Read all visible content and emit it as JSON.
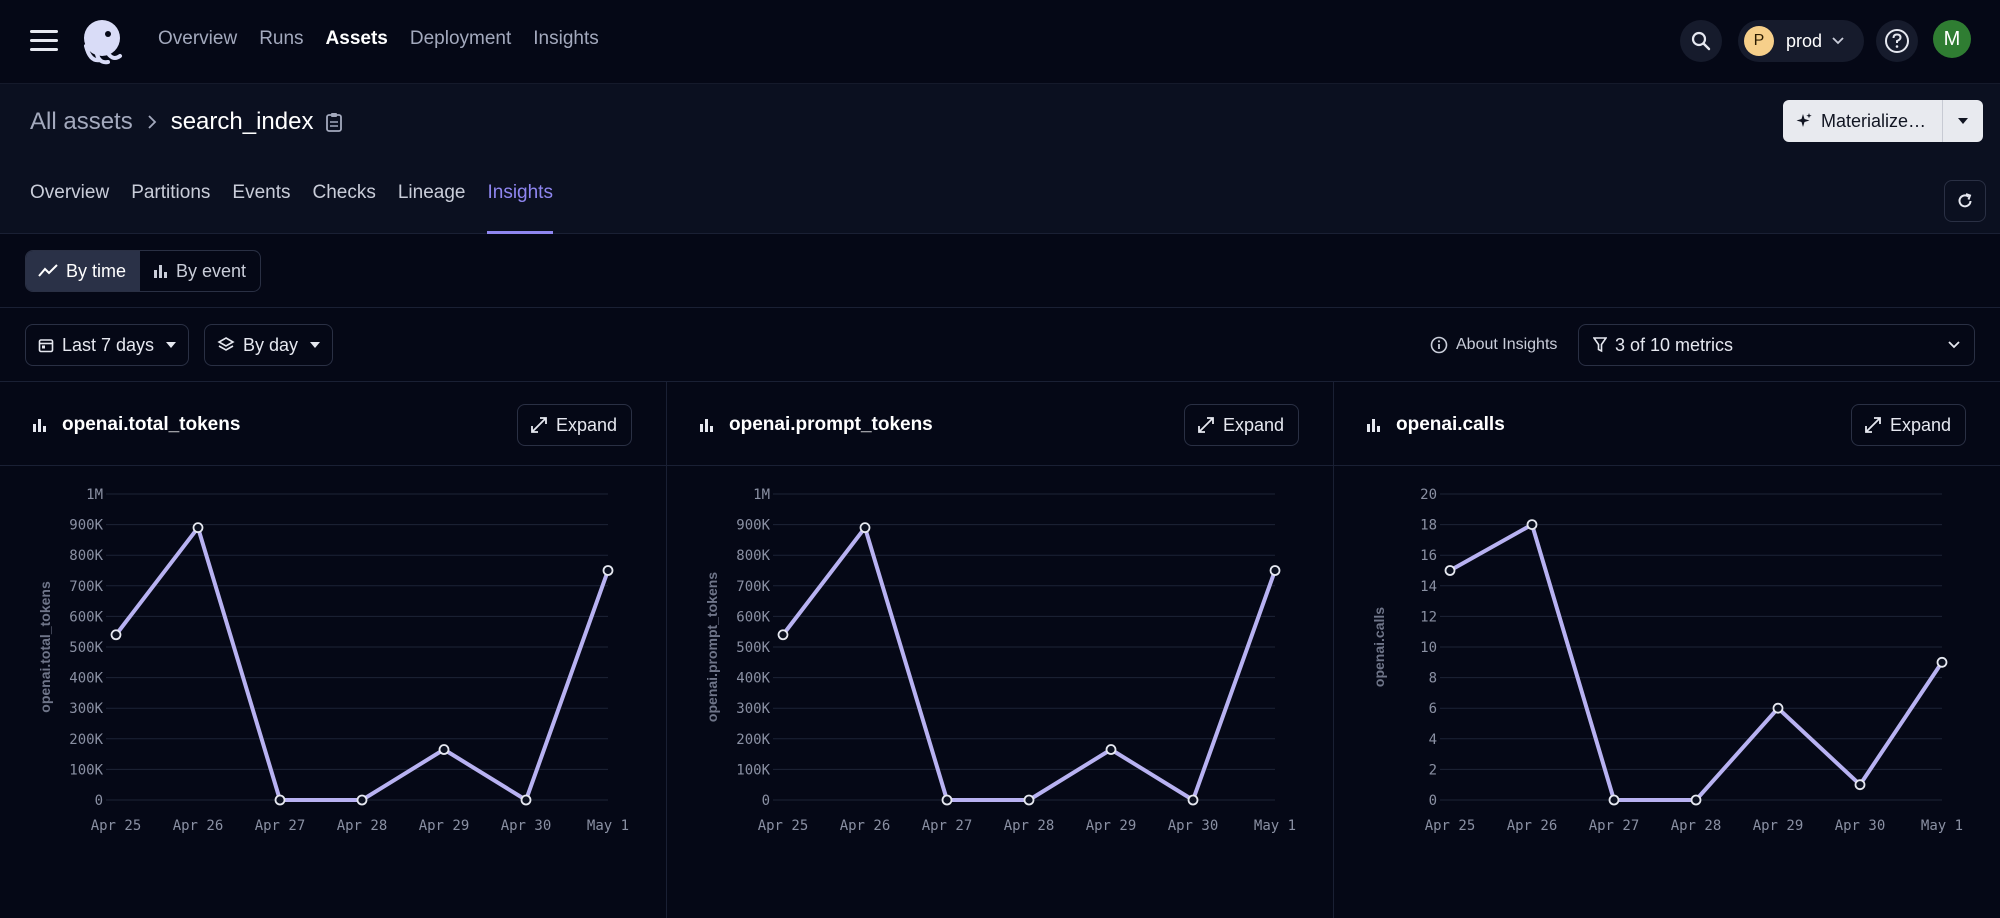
{
  "topbar": {
    "nav": [
      "Overview",
      "Runs",
      "Assets",
      "Deployment",
      "Insights"
    ],
    "active_nav": "Assets",
    "env": {
      "badge": "P",
      "name": "prod"
    },
    "avatar": "M",
    "colors": {
      "env_badge": "#f6cf8a",
      "avatar": "#2f7d32"
    }
  },
  "asset": {
    "breadcrumb_root": "All assets",
    "name": "search_index",
    "materialize_label": "Materialize…",
    "tabs": [
      "Overview",
      "Partitions",
      "Events",
      "Checks",
      "Lineage",
      "Insights"
    ],
    "active_tab": "Insights"
  },
  "view_toggle": {
    "by_time": "By time",
    "by_event": "By event"
  },
  "filters": {
    "range": "Last 7 days",
    "granularity": "By day",
    "about": "About Insights",
    "metrics": "3 of 10 metrics"
  },
  "expand_label": "Expand",
  "accent_color": "#8f86f0",
  "line_color": "#b8b2f2",
  "chart_data": [
    {
      "type": "line",
      "title": "openai.total_tokens",
      "ylabel": "openai.total_tokens",
      "x": [
        "Apr 25",
        "Apr 26",
        "Apr 27",
        "Apr 28",
        "Apr 29",
        "Apr 30",
        "May 1"
      ],
      "values": [
        540000,
        890000,
        0,
        0,
        165000,
        0,
        750000
      ],
      "yticks": [
        "0",
        "100K",
        "200K",
        "300K",
        "400K",
        "500K",
        "600K",
        "700K",
        "800K",
        "900K",
        "1M"
      ],
      "ylim": [
        0,
        1000000
      ],
      "grid": true
    },
    {
      "type": "line",
      "title": "openai.prompt_tokens",
      "ylabel": "openai.prompt_tokens",
      "x": [
        "Apr 25",
        "Apr 26",
        "Apr 27",
        "Apr 28",
        "Apr 29",
        "Apr 30",
        "May 1"
      ],
      "values": [
        540000,
        890000,
        0,
        0,
        165000,
        0,
        750000
      ],
      "yticks": [
        "0",
        "100K",
        "200K",
        "300K",
        "400K",
        "500K",
        "600K",
        "700K",
        "800K",
        "900K",
        "1M"
      ],
      "ylim": [
        0,
        1000000
      ],
      "grid": true
    },
    {
      "type": "line",
      "title": "openai.calls",
      "ylabel": "openai.calls",
      "x": [
        "Apr 25",
        "Apr 26",
        "Apr 27",
        "Apr 28",
        "Apr 29",
        "Apr 30",
        "May 1"
      ],
      "values": [
        15,
        18,
        0,
        0,
        6,
        1,
        9
      ],
      "yticks": [
        "0",
        "2",
        "4",
        "6",
        "8",
        "10",
        "12",
        "14",
        "16",
        "18",
        "20"
      ],
      "ylim": [
        0,
        20
      ],
      "grid": true
    }
  ]
}
